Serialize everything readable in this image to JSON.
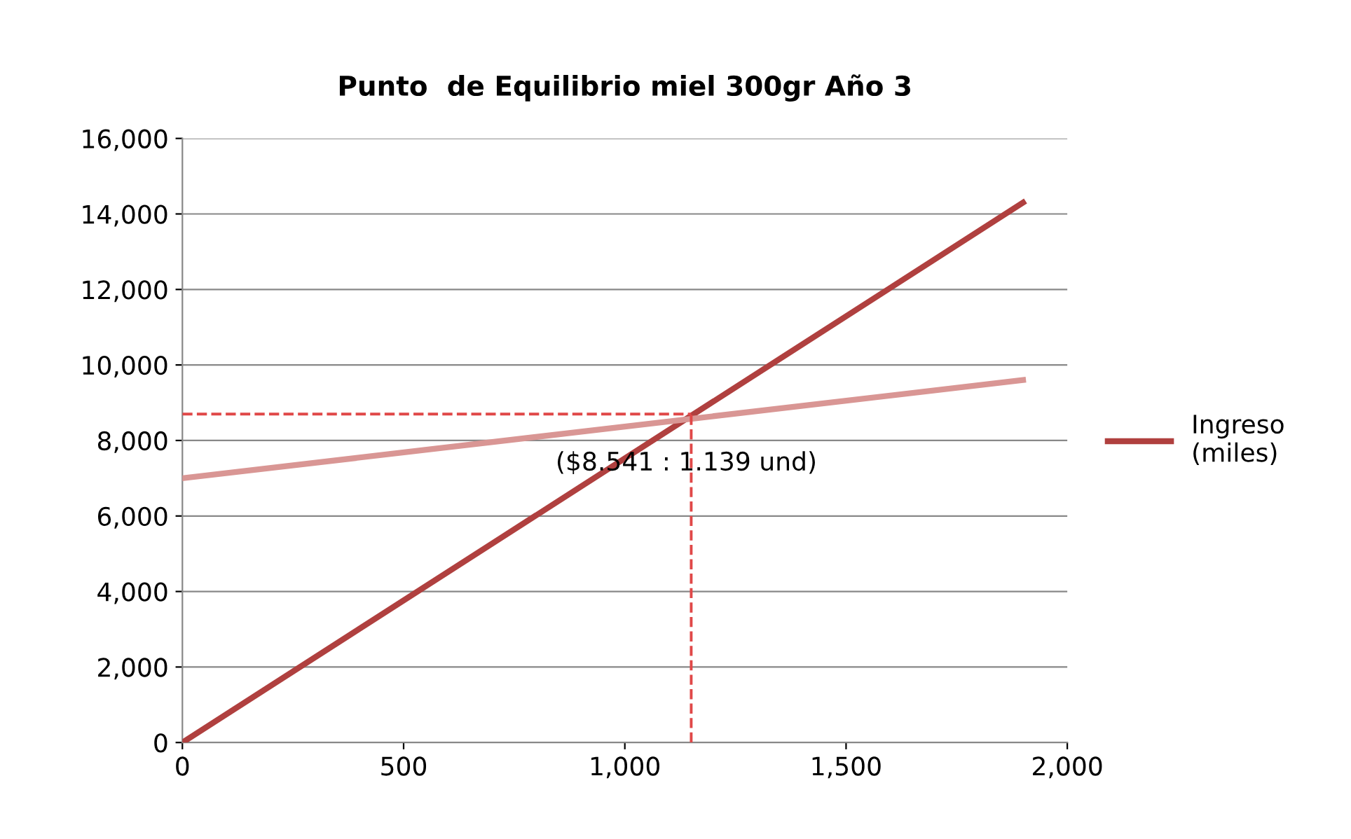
{
  "chart_data": {
    "type": "line",
    "title": "Punto  de Equilibrio miel 300gr Año 3",
    "xlim": [
      0,
      2000
    ],
    "xticks": [
      0,
      500,
      {
        "value": 1000,
        "label": "1,000"
      },
      {
        "value": 1500,
        "label": "1,500"
      },
      {
        "value": 2000,
        "label": "2,000"
      }
    ],
    "ylim": [
      0,
      16000
    ],
    "yticks": [
      0,
      {
        "value": 2000,
        "label": "2,000"
      },
      {
        "value": 4000,
        "label": "4,000"
      },
      {
        "value": 6000,
        "label": "6,000"
      },
      {
        "value": 8000,
        "label": "8,000"
      },
      {
        "value": 10000,
        "label": "10,000"
      },
      {
        "value": 12000,
        "label": "12,000"
      },
      {
        "value": 14000,
        "label": "14,000"
      },
      {
        "value": 16000,
        "label": "16,000"
      }
    ],
    "grid": "y",
    "legend": "right",
    "marker": "none",
    "series": [
      {
        "name": "Ingreso\n(miles)",
        "color": "#b0403f",
        "x": [
          0,
          1900
        ],
        "values": [
          0,
          14300
        ]
      },
      {
        "color": "#d99694",
        "x": [
          0,
          1900
        ],
        "values": [
          7000,
          9600
        ]
      },
      {
        "color": "#e04848",
        "line_style": "dashed",
        "x": [
          0,
          1150
        ],
        "values": [
          8700,
          8700
        ]
      },
      {
        "color": "#e04848",
        "line_style": "dashed",
        "x": [
          1150,
          1150
        ],
        "values": [
          0,
          8700
        ]
      }
    ],
    "annotations": [
      {
        "text": "($8.541 : 1.139 und)",
        "x": 1139,
        "y": 8541
      }
    ]
  }
}
